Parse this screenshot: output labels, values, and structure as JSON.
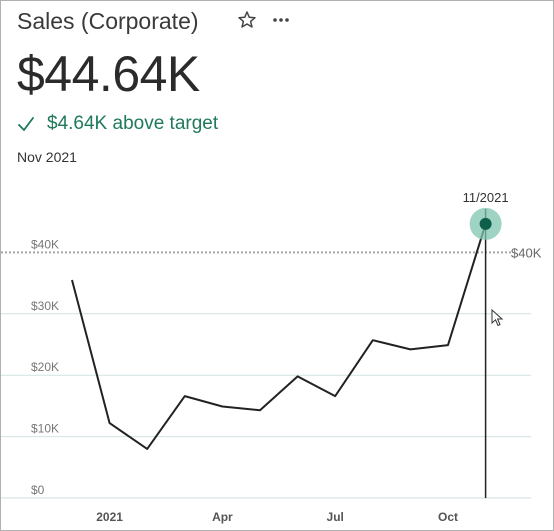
{
  "card": {
    "title": "Sales (Corporate)",
    "value": "$44.64K",
    "delta_text": "$4.64K above target",
    "period": "Nov 2021"
  },
  "icons": {
    "favorite": "star-outline-icon",
    "more": "more-options-icon",
    "status": "check-icon"
  },
  "colors": {
    "accent": "#1f7a5a",
    "highlight_marker": "#0f5e4a",
    "highlight_halo": "#7fc4b0",
    "gridline": "#cfe2e2",
    "target_line": "#a6a6a6",
    "series_line": "#222222"
  },
  "chart_data": {
    "type": "line",
    "x": [
      "2020-12",
      "2021-01",
      "2021-02",
      "2021-03",
      "2021-04",
      "2021-05",
      "2021-06",
      "2021-07",
      "2021-08",
      "2021-09",
      "2021-10",
      "2021-11"
    ],
    "values": [
      35.5,
      12.2,
      8.0,
      16.6,
      14.9,
      14.3,
      19.8,
      16.6,
      25.7,
      24.2,
      24.9,
      44.64
    ],
    "x_tick_labels": [
      "2021",
      "Apr",
      "Jul",
      "Oct"
    ],
    "x_tick_positions": [
      "2021-01",
      "2021-04",
      "2021-07",
      "2021-10"
    ],
    "y_tick_labels": [
      "$0",
      "$10K",
      "$20K",
      "$30K",
      "$40K"
    ],
    "y_tick_values": [
      0,
      10,
      20,
      30,
      40
    ],
    "ylim": [
      0,
      50
    ],
    "target": {
      "value": 40,
      "label": "$40K"
    },
    "highlight": {
      "x": "2021-11",
      "label": "11/2021"
    },
    "grid": true
  }
}
